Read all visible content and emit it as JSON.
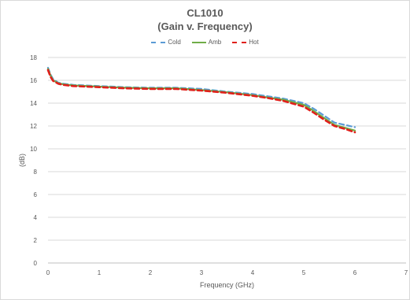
{
  "chart_data": {
    "type": "line",
    "title": "CL1010",
    "subtitle": "(Gain v. Frequency)",
    "xlabel": "Frequency (GHz)",
    "ylabel": "(dB)",
    "xlim": [
      0,
      7
    ],
    "ylim": [
      0,
      18
    ],
    "x_ticks": [
      "0",
      "1",
      "2",
      "3",
      "4",
      "5",
      "6",
      "7"
    ],
    "y_ticks": [
      "0",
      "2",
      "4",
      "6",
      "8",
      "10",
      "12",
      "14",
      "16",
      "18"
    ],
    "grid": true,
    "legend_position": "top",
    "series": [
      {
        "name": "Cold",
        "color": "#5b9bd5",
        "style": "dashed",
        "x": [
          0.0,
          0.05,
          0.1,
          0.2,
          0.3,
          0.5,
          1.0,
          1.5,
          2.0,
          2.5,
          3.0,
          3.5,
          4.0,
          4.3,
          4.6,
          5.0,
          5.2,
          5.4,
          5.6,
          5.8,
          6.0
        ],
        "y": [
          17.1,
          16.5,
          16.1,
          15.8,
          15.7,
          15.6,
          15.5,
          15.4,
          15.35,
          15.35,
          15.25,
          15.0,
          14.8,
          14.6,
          14.4,
          14.0,
          13.5,
          12.9,
          12.3,
          12.1,
          11.9
        ]
      },
      {
        "name": "Amb",
        "color": "#70ad47",
        "style": "solid",
        "x": [
          0.0,
          0.05,
          0.1,
          0.2,
          0.3,
          0.5,
          1.0,
          1.5,
          2.0,
          2.5,
          3.0,
          3.5,
          4.0,
          4.3,
          4.6,
          5.0,
          5.2,
          5.4,
          5.6,
          5.8,
          6.0
        ],
        "y": [
          17.0,
          16.4,
          16.0,
          15.75,
          15.65,
          15.55,
          15.45,
          15.35,
          15.3,
          15.3,
          15.15,
          14.95,
          14.7,
          14.5,
          14.3,
          13.85,
          13.3,
          12.7,
          12.1,
          11.85,
          11.6
        ]
      },
      {
        "name": "Hot",
        "color": "#e0201b",
        "style": "dashed",
        "x": [
          0.0,
          0.05,
          0.1,
          0.2,
          0.3,
          0.5,
          1.0,
          1.5,
          2.0,
          2.5,
          3.0,
          3.5,
          4.0,
          4.3,
          4.6,
          5.0,
          5.2,
          5.4,
          5.6,
          5.8,
          6.0
        ],
        "y": [
          16.9,
          16.3,
          15.95,
          15.7,
          15.6,
          15.5,
          15.4,
          15.3,
          15.25,
          15.25,
          15.1,
          14.9,
          14.65,
          14.45,
          14.2,
          13.7,
          13.15,
          12.55,
          12.0,
          11.75,
          11.45
        ]
      }
    ]
  }
}
